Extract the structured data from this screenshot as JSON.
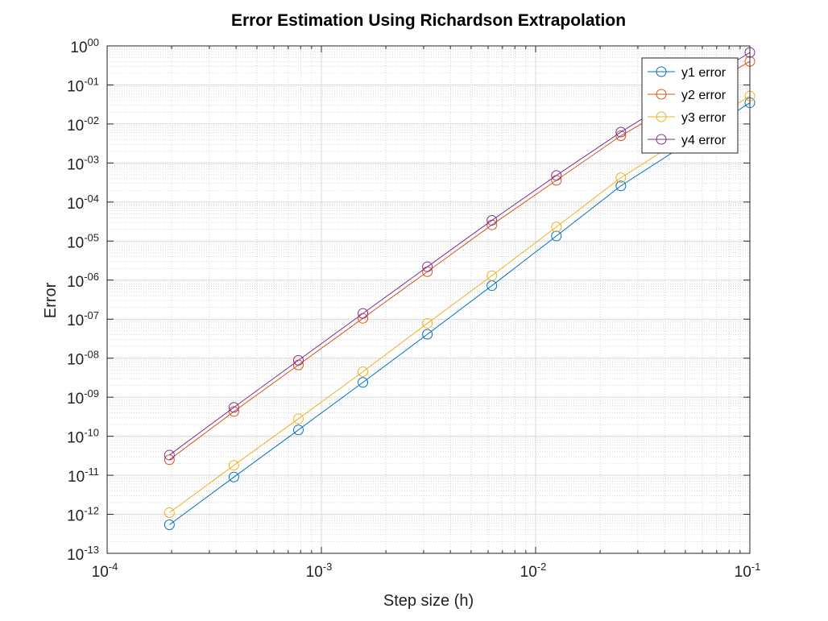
{
  "chart_data": {
    "type": "line",
    "title": "Error Estimation Using Richardson Extrapolation",
    "xlabel": "Step size (h)",
    "ylabel": "Error",
    "xscale": "log",
    "yscale": "log",
    "xlim": [
      0.0001,
      0.1
    ],
    "ylim": [
      1e-13,
      1
    ],
    "grid": true,
    "minor_grid": true,
    "legend_position": "top-right",
    "marker": "circle",
    "x": [
      0.1,
      0.025,
      0.0125,
      0.00625,
      0.003125,
      0.0015625,
      0.00078125,
      0.000390625,
      0.0001953125
    ],
    "xticks": [
      {
        "base": "10",
        "exp": "-4"
      },
      {
        "base": "10",
        "exp": "-3"
      },
      {
        "base": "10",
        "exp": "-2"
      },
      {
        "base": "10",
        "exp": "-1"
      }
    ],
    "yticks": [
      {
        "base": "10",
        "exp": "00"
      },
      {
        "base": "10",
        "exp": "-01"
      },
      {
        "base": "10",
        "exp": "-02"
      },
      {
        "base": "10",
        "exp": "-03"
      },
      {
        "base": "10",
        "exp": "-04"
      },
      {
        "base": "10",
        "exp": "-05"
      },
      {
        "base": "10",
        "exp": "-06"
      },
      {
        "base": "10",
        "exp": "-07"
      },
      {
        "base": "10",
        "exp": "-08"
      },
      {
        "base": "10",
        "exp": "-09"
      },
      {
        "base": "10",
        "exp": "-10"
      },
      {
        "base": "10",
        "exp": "-11"
      },
      {
        "base": "10",
        "exp": "-12"
      },
      {
        "base": "10",
        "exp": "-13"
      }
    ],
    "series": [
      {
        "name": "y1 error",
        "color": "#0072bd",
        "values": [
          0.035,
          0.00026,
          1.35e-05,
          7.2e-07,
          4.1e-08,
          2.4e-09,
          1.45e-10,
          9e-12,
          5.4e-13
        ]
      },
      {
        "name": "y2 error",
        "color": "#d95319",
        "values": [
          0.4,
          0.005,
          0.00036,
          2.6e-05,
          1.65e-06,
          1.05e-07,
          6.7e-09,
          4.3e-10,
          2.5e-11
        ]
      },
      {
        "name": "y3 error",
        "color": "#edb120",
        "values": [
          0.052,
          0.00042,
          2.3e-05,
          1.3e-06,
          7.8e-08,
          4.5e-09,
          2.8e-10,
          1.8e-11,
          1.1e-12
        ]
      },
      {
        "name": "y4 error",
        "color": "#7e2f8e",
        "values": [
          0.68,
          0.0062,
          0.00048,
          3.4e-05,
          2.2e-06,
          1.4e-07,
          8.8e-09,
          5.5e-10,
          3.3e-11
        ]
      }
    ]
  }
}
